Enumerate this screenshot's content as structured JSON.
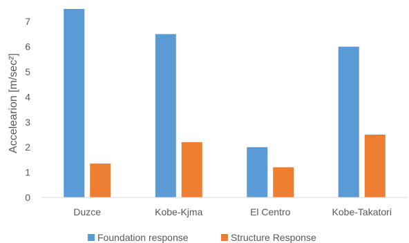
{
  "chart_data": {
    "type": "bar",
    "categories": [
      "Duzce",
      "Kobe-Kjma",
      "El Centro",
      "Kobe-Takatori"
    ],
    "series": [
      {
        "name": "Foundation response",
        "values": [
          7.5,
          6.5,
          2.0,
          6.0
        ],
        "color": "#5B9BD5"
      },
      {
        "name": "Structure Response",
        "values": [
          1.35,
          2.2,
          1.2,
          2.5
        ],
        "color": "#ED7D31"
      }
    ],
    "ylabel": "Accelearion  [m/sec²]",
    "ylim": [
      0,
      7.5
    ],
    "yticks": [
      0,
      1,
      2,
      3,
      4,
      5,
      6,
      7
    ],
    "grid": false,
    "legend": "bottom"
  }
}
